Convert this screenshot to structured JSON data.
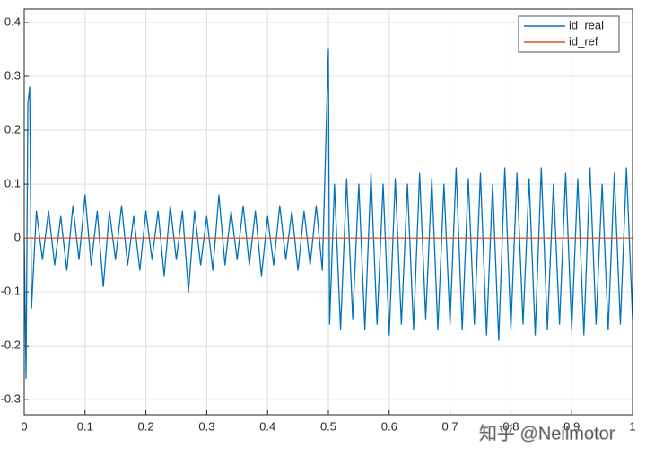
{
  "chart_data": {
    "type": "line",
    "xlim": [
      0,
      1
    ],
    "ylim": [
      -0.328,
      0.425
    ],
    "xticks": [
      0,
      0.1,
      0.2,
      0.3,
      0.4,
      0.5,
      0.6,
      0.7,
      0.8,
      0.9,
      1
    ],
    "yticks": [
      -0.3,
      -0.2,
      -0.1,
      0,
      0.1,
      0.2,
      0.3,
      0.4
    ],
    "grid": true,
    "legend": "upper right",
    "watermark": "知乎 @Neilmotor",
    "series": [
      {
        "name": "id_real",
        "color": "#0072bd",
        "x": [
          0,
          0.003,
          0.006,
          0.009,
          0.012,
          0.02,
          0.03,
          0.04,
          0.05,
          0.06,
          0.07,
          0.08,
          0.09,
          0.1,
          0.11,
          0.12,
          0.13,
          0.14,
          0.15,
          0.16,
          0.17,
          0.18,
          0.19,
          0.2,
          0.21,
          0.22,
          0.23,
          0.24,
          0.25,
          0.26,
          0.27,
          0.28,
          0.29,
          0.3,
          0.31,
          0.32,
          0.33,
          0.34,
          0.35,
          0.36,
          0.37,
          0.38,
          0.39,
          0.4,
          0.41,
          0.42,
          0.43,
          0.44,
          0.45,
          0.46,
          0.47,
          0.48,
          0.49,
          0.5,
          0.502,
          0.51,
          0.52,
          0.53,
          0.54,
          0.55,
          0.56,
          0.57,
          0.58,
          0.59,
          0.6,
          0.61,
          0.62,
          0.63,
          0.64,
          0.65,
          0.66,
          0.67,
          0.68,
          0.69,
          0.7,
          0.71,
          0.72,
          0.73,
          0.74,
          0.75,
          0.76,
          0.77,
          0.78,
          0.79,
          0.8,
          0.81,
          0.82,
          0.83,
          0.84,
          0.85,
          0.86,
          0.87,
          0.88,
          0.89,
          0.9,
          0.91,
          0.92,
          0.93,
          0.94,
          0.95,
          0.96,
          0.97,
          0.98,
          0.99,
          1.0
        ],
        "values": [
          0,
          -0.26,
          0.25,
          0.28,
          -0.13,
          0.05,
          -0.04,
          0.05,
          -0.05,
          0.04,
          -0.06,
          0.06,
          -0.04,
          0.08,
          -0.05,
          0.05,
          -0.09,
          0.05,
          -0.04,
          0.06,
          -0.05,
          0.04,
          -0.06,
          0.05,
          -0.04,
          0.05,
          -0.07,
          0.06,
          -0.04,
          0.05,
          -0.1,
          0.05,
          -0.05,
          0.04,
          -0.06,
          0.08,
          -0.05,
          0.05,
          -0.04,
          0.06,
          -0.05,
          0.05,
          -0.07,
          0.04,
          -0.05,
          0.06,
          -0.04,
          0.05,
          -0.06,
          0.05,
          -0.05,
          0.06,
          -0.06,
          0.35,
          -0.16,
          0.1,
          -0.17,
          0.11,
          -0.15,
          0.1,
          -0.17,
          0.12,
          -0.16,
          0.1,
          -0.18,
          0.11,
          -0.16,
          0.1,
          -0.17,
          0.12,
          -0.15,
          0.11,
          -0.17,
          0.1,
          -0.16,
          0.13,
          -0.17,
          0.11,
          -0.16,
          0.12,
          -0.18,
          0.1,
          -0.19,
          0.13,
          -0.17,
          0.12,
          -0.16,
          0.11,
          -0.18,
          0.13,
          -0.17,
          0.1,
          -0.16,
          0.12,
          -0.17,
          0.11,
          -0.18,
          0.13,
          -0.16,
          0.1,
          -0.17,
          0.12,
          -0.16,
          0.13,
          -0.15
        ]
      },
      {
        "name": "id_ref",
        "color": "#d95319",
        "x": [
          0,
          1
        ],
        "values": [
          0,
          0
        ]
      }
    ]
  }
}
